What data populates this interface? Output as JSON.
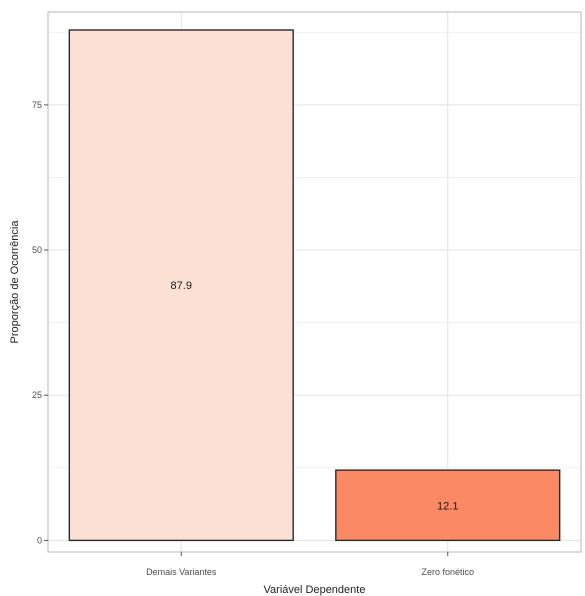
{
  "chart_data": {
    "type": "bar",
    "categories": [
      "Demais Variantes",
      "Zero fonético"
    ],
    "values": [
      87.9,
      12.1
    ],
    "data_labels": [
      "87.9",
      "12.1"
    ],
    "title": "",
    "xlabel": "Variável Dependente",
    "ylabel": "Proporção de Ocorrência",
    "ylim": [
      -2,
      91
    ],
    "yticks": [
      0,
      25,
      50,
      75
    ],
    "ytick_labels": [
      "0",
      "25",
      "50",
      "75"
    ],
    "grid": true,
    "legend": "none",
    "colors": {
      "bars": [
        "#fde0d4",
        "#fb8a64"
      ],
      "bar_outline": "#2b2b2b",
      "grid_major": "#e3e3e3",
      "grid_minor": "#f1f1f1",
      "panel_border": "#b8b8b8",
      "background": "#ffffff"
    }
  }
}
